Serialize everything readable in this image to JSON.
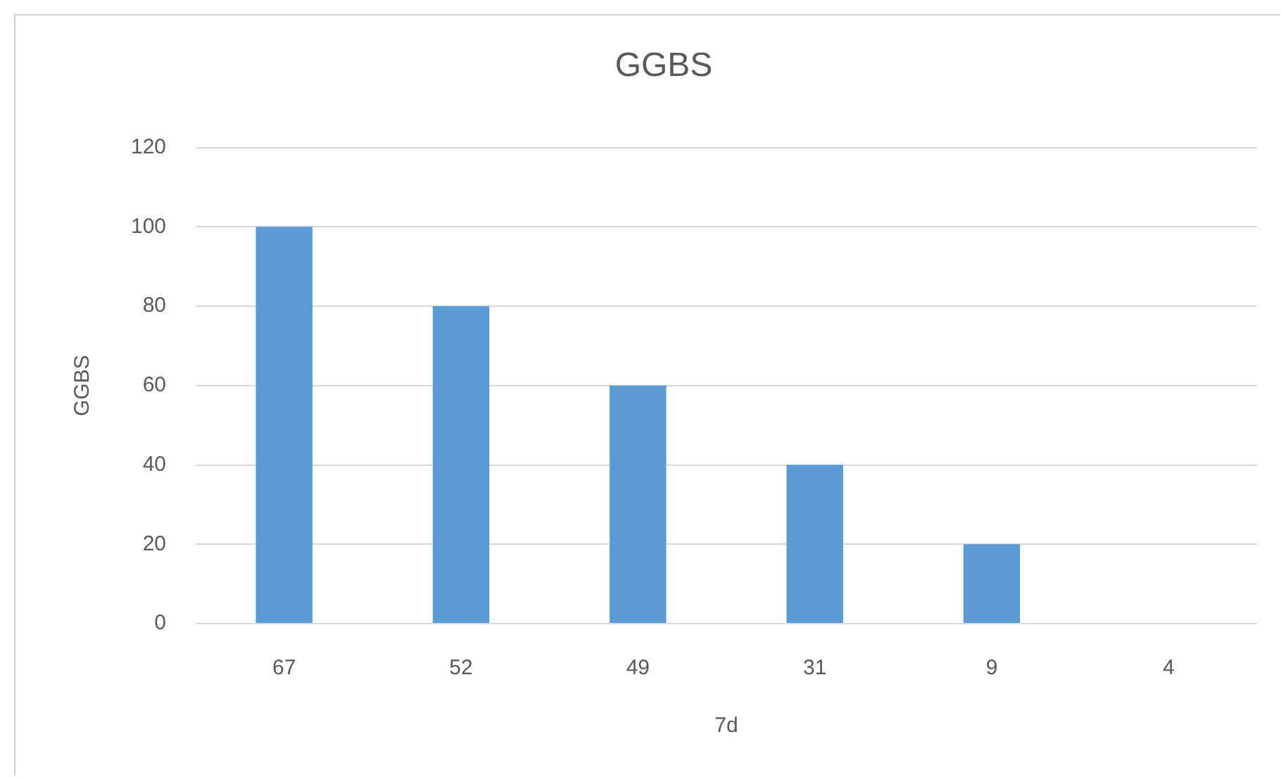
{
  "chart_data": {
    "type": "bar",
    "title": "GGBS",
    "xlabel": "7d",
    "ylabel": "GGBS",
    "categories": [
      "67",
      "52",
      "49",
      "31",
      "9",
      "4"
    ],
    "values": [
      100,
      80,
      60,
      40,
      20,
      0
    ],
    "color": "#5b9bd5",
    "ylim": [
      0,
      120
    ],
    "yticks": [
      0,
      20,
      40,
      60,
      80,
      100,
      120
    ],
    "grid": "y"
  }
}
